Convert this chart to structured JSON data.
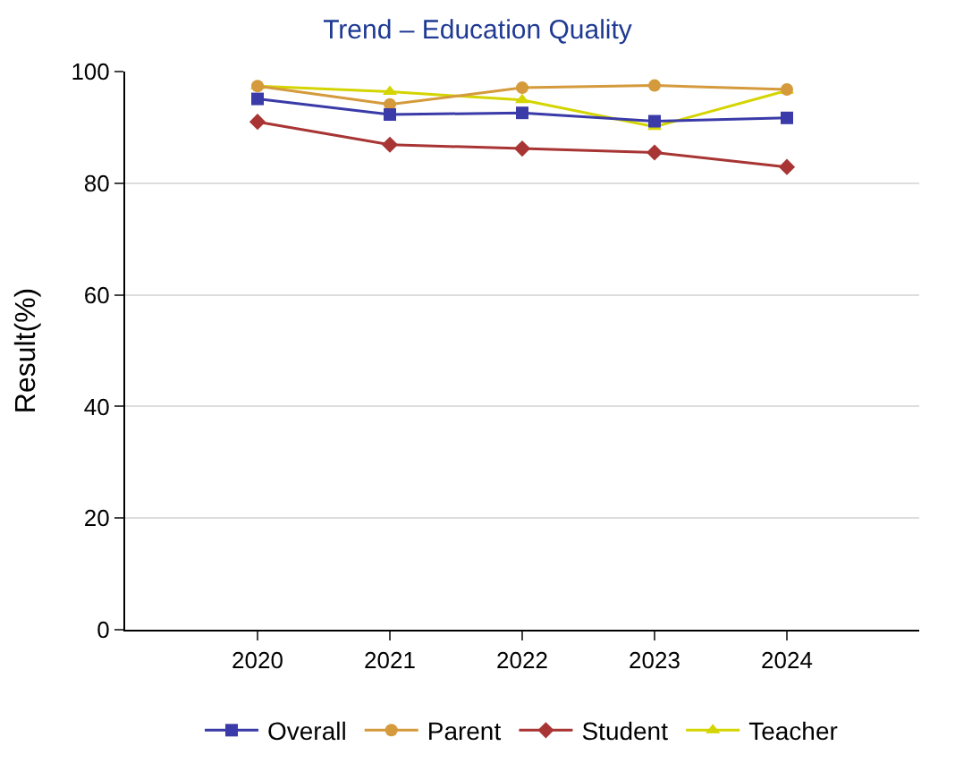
{
  "chart_data": {
    "type": "line",
    "title": "Trend – Education Quality",
    "ylabel": "Result(%)",
    "categories": [
      "2020",
      "2021",
      "2022",
      "2023",
      "2024"
    ],
    "series": [
      {
        "name": "Overall",
        "color": "#3a3aa8",
        "marker": "square",
        "values": [
          95.1,
          92.3,
          92.6,
          91.1,
          91.7
        ]
      },
      {
        "name": "Parent",
        "color": "#d49a3c",
        "marker": "circle",
        "values": [
          97.4,
          94.1,
          97.1,
          97.5,
          96.8
        ]
      },
      {
        "name": "Student",
        "color": "#a83434",
        "marker": "diamond",
        "values": [
          91.0,
          86.9,
          86.2,
          85.5,
          82.9
        ]
      },
      {
        "name": "Teacher",
        "color": "#d4d400",
        "marker": "triangle",
        "values": [
          97.4,
          96.4,
          94.9,
          90.1,
          96.6
        ]
      }
    ],
    "ylim": [
      0,
      100
    ],
    "yticks": [
      0,
      20,
      40,
      60,
      80,
      100
    ],
    "grid": "y",
    "legend": "bottom"
  }
}
